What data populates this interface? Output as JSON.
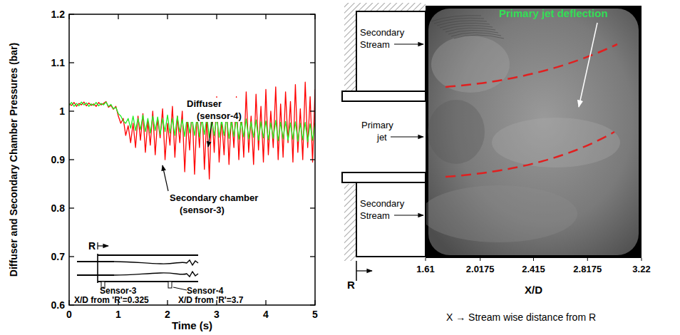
{
  "chart_data": [
    {
      "type": "line",
      "xlabel": "Time (s)",
      "ylabel": "Diffuser and Secondary Chamber Pressures (bar)",
      "xlim": [
        0,
        5
      ],
      "xticks": [
        0,
        1,
        2,
        3,
        4,
        5
      ],
      "ylim": [
        0.6,
        1.2
      ],
      "yticks": [
        0.6,
        0.7,
        0.8,
        0.9,
        1,
        1.1,
        1.2
      ],
      "x": [
        0,
        0.05,
        0.1,
        0.15,
        0.2,
        0.25,
        0.3,
        0.35,
        0.4,
        0.45,
        0.5,
        0.55,
        0.6,
        0.65,
        0.7,
        0.75,
        0.8,
        0.85,
        0.9,
        0.95,
        1,
        1.05,
        1.1,
        1.15,
        1.2,
        1.25,
        1.3,
        1.35,
        1.4,
        1.45,
        1.5,
        1.55,
        1.6,
        1.65,
        1.7,
        1.75,
        1.8,
        1.85,
        1.9,
        1.95,
        2,
        2.05,
        2.1,
        2.15,
        2.2,
        2.25,
        2.3,
        2.35,
        2.4,
        2.45,
        2.5,
        2.55,
        2.6,
        2.65,
        2.7,
        2.75,
        2.8,
        2.85,
        2.9,
        2.95,
        3,
        3.05,
        3.1,
        3.15,
        3.2,
        3.25,
        3.3,
        3.35,
        3.4,
        3.45,
        3.5,
        3.55,
        3.6,
        3.65,
        3.7,
        3.75,
        3.8,
        3.85,
        3.9,
        3.95,
        4,
        4.05,
        4.1,
        4.15,
        4.2,
        4.25,
        4.3,
        4.35,
        4.4,
        4.45,
        4.5,
        4.55,
        4.6,
        4.65,
        4.7,
        4.75,
        4.8,
        4.85,
        4.9,
        4.95,
        5
      ],
      "series": [
        {
          "name": "Secondary chamber (sensor-3)",
          "color": "#ff0000",
          "line_style": "solid",
          "values": [
            1.015,
            1.012,
            1.018,
            1.01,
            1.016,
            1.013,
            1.019,
            1.011,
            1.017,
            1.012,
            1.015,
            1.01,
            1.018,
            1.013,
            1.016,
            1.02,
            1.008,
            1.012,
            1.004,
            1.01,
            0.99,
            0.975,
            0.985,
            0.95,
            0.97,
            0.935,
            0.975,
            0.925,
            0.99,
            0.94,
            0.995,
            0.915,
            0.98,
            0.93,
            1.0,
            0.91,
            0.985,
            0.945,
            1.005,
            0.9,
            0.975,
            0.93,
            1.01,
            0.905,
            0.99,
            0.935,
            1.0,
            0.875,
            0.985,
            0.92,
            1.01,
            0.87,
            0.995,
            0.925,
            1.02,
            0.88,
            0.99,
            0.86,
            1.005,
            0.915,
            1.03,
            0.895,
            0.985,
            0.91,
            1.015,
            0.89,
            0.995,
            0.925,
            1.03,
            0.9,
            1.0,
            0.905,
            1.04,
            0.915,
            0.99,
            0.89,
            1.035,
            0.92,
            1.01,
            0.895,
            1.045,
            0.91,
            1.0,
            0.925,
            1.05,
            0.9,
            1.015,
            0.905,
            1.04,
            0.935,
            1.02,
            0.895,
            1.055,
            0.915,
            1.005,
            0.9,
            1.06,
            0.925,
            1.03,
            0.895,
            1.045
          ]
        },
        {
          "name": "Diffuser (sensor-4)",
          "color": "#22ee22",
          "line_style": "solid",
          "values": [
            1.012,
            1.018,
            1.01,
            1.016,
            1.011,
            1.019,
            1.013,
            1.017,
            1.01,
            1.015,
            1.012,
            1.018,
            1.011,
            1.016,
            1.013,
            1.019,
            1.01,
            1.014,
            1.005,
            1.008,
            0.995,
            0.99,
            0.98,
            0.975,
            0.985,
            0.965,
            0.99,
            0.96,
            0.985,
            0.962,
            0.992,
            0.958,
            0.985,
            0.955,
            0.99,
            0.96,
            0.988,
            0.952,
            0.985,
            0.958,
            0.992,
            0.955,
            0.985,
            0.95,
            0.99,
            0.957,
            0.983,
            0.948,
            0.99,
            0.955,
            0.985,
            0.95,
            0.988,
            0.947,
            0.985,
            0.952,
            0.99,
            0.945,
            0.983,
            0.95,
            0.988,
            0.946,
            0.982,
            0.95,
            0.987,
            0.944,
            0.98,
            0.948,
            0.985,
            0.942,
            0.98,
            0.947,
            0.984,
            0.943,
            0.978,
            0.946,
            0.982,
            0.94,
            0.978,
            0.945,
            0.98,
            0.941,
            0.976,
            0.944,
            0.981,
            0.939,
            0.977,
            0.943,
            0.979,
            0.94,
            0.976,
            0.942,
            0.978,
            0.938,
            0.975,
            0.941,
            0.977,
            0.937,
            0.974,
            0.94,
            0.976
          ]
        }
      ],
      "inset_labels": [
        "R",
        "Sensor-3",
        "X/D from 'R'=0.325",
        "Sensor-4",
        "X/D from 'R'=3.7"
      ]
    },
    {
      "type": "image",
      "xlabel": "X/D",
      "xlim": [
        1.61,
        3.22
      ],
      "xticks": [
        1.61,
        2.0175,
        2.415,
        2.8175,
        3.22
      ],
      "annotations": [
        "Primary jet deflection",
        "Secondary Stream",
        "Primary jet",
        "Secondary Stream",
        "R"
      ],
      "caption": "X → Stream wise distance from R"
    }
  ]
}
